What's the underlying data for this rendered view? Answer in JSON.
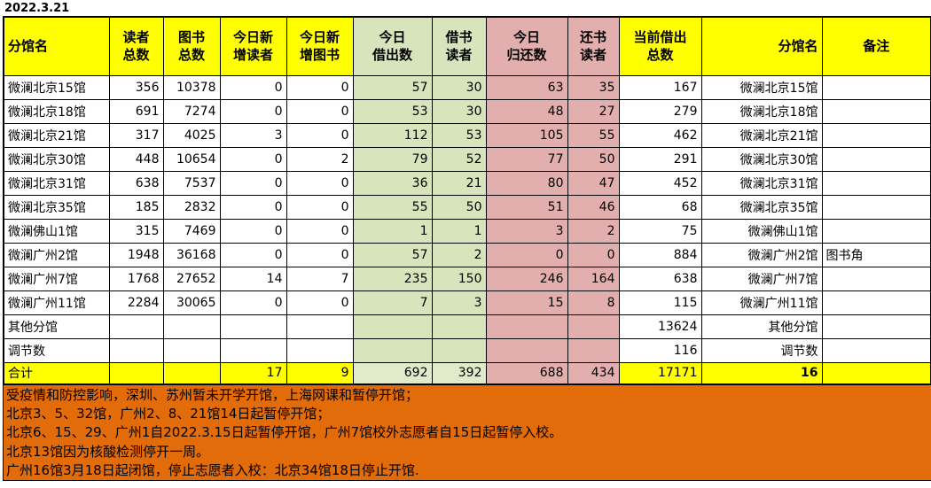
{
  "date": "2022.3.21",
  "colors": {
    "yellow": "#ffff00",
    "green": "#d8e4bc",
    "green_light": "#e1eacb",
    "pink": "#e2afae",
    "orange": "#e26b0a",
    "border": "#000000",
    "white": "#ffffff"
  },
  "table": {
    "columns": [
      {
        "key": "branch_name",
        "label": "分馆名",
        "header_bg": "yellow",
        "body_bg": "white",
        "total_bg": "yellow",
        "header_align": "left",
        "align": "left"
      },
      {
        "key": "readers_total",
        "label": "读者\n总数",
        "header_bg": "yellow",
        "body_bg": "white",
        "total_bg": "yellow",
        "header_align": "center",
        "align": "right"
      },
      {
        "key": "books_total",
        "label": "图书\n总数",
        "header_bg": "yellow",
        "body_bg": "white",
        "total_bg": "yellow",
        "header_align": "center",
        "align": "right"
      },
      {
        "key": "new_readers_today",
        "label": "今日新\n增读者",
        "header_bg": "yellow",
        "body_bg": "white",
        "total_bg": "yellow",
        "header_align": "center",
        "align": "right"
      },
      {
        "key": "new_books_today",
        "label": "今日新\n增图书",
        "header_bg": "yellow",
        "body_bg": "white",
        "total_bg": "yellow",
        "header_align": "center",
        "align": "right"
      },
      {
        "key": "borrowed_today",
        "label": "今日\n借出数",
        "header_bg": "green",
        "body_bg": "green",
        "total_bg": "green_light",
        "header_align": "center",
        "align": "right"
      },
      {
        "key": "borrowing_readers",
        "label": "借书\n读者",
        "header_bg": "green",
        "body_bg": "green",
        "total_bg": "green_light",
        "header_align": "center",
        "align": "right"
      },
      {
        "key": "returned_today",
        "label": "今日\n归还数",
        "header_bg": "pink",
        "body_bg": "pink",
        "total_bg": "pink",
        "header_align": "center",
        "align": "right"
      },
      {
        "key": "returning_readers",
        "label": "还书\n读者",
        "header_bg": "pink",
        "body_bg": "pink",
        "total_bg": "pink",
        "header_align": "center",
        "align": "right"
      },
      {
        "key": "current_borrowed_total",
        "label": "当前借出\n总数",
        "header_bg": "yellow",
        "body_bg": "white",
        "total_bg": "yellow",
        "header_align": "center",
        "align": "right"
      },
      {
        "key": "branch_name_right",
        "label": "分馆名",
        "header_bg": "yellow",
        "body_bg": "white",
        "total_bg": "yellow",
        "header_align": "right",
        "align": "right"
      },
      {
        "key": "remark",
        "label": "备注",
        "header_bg": "yellow",
        "body_bg": "white",
        "total_bg": "yellow",
        "header_align": "center",
        "align": "left"
      }
    ],
    "rows": [
      [
        "微澜北京15馆",
        "356",
        "10378",
        "0",
        "0",
        "57",
        "30",
        "63",
        "35",
        "167",
        "微澜北京15馆",
        ""
      ],
      [
        "微澜北京18馆",
        "691",
        "7274",
        "0",
        "0",
        "53",
        "30",
        "48",
        "27",
        "279",
        "微澜北京18馆",
        ""
      ],
      [
        "微澜北京21馆",
        "317",
        "4025",
        "3",
        "0",
        "112",
        "53",
        "105",
        "55",
        "462",
        "微澜北京21馆",
        ""
      ],
      [
        "微澜北京30馆",
        "448",
        "10654",
        "0",
        "2",
        "79",
        "52",
        "77",
        "50",
        "291",
        "微澜北京30馆",
        ""
      ],
      [
        "微澜北京31馆",
        "638",
        "7537",
        "0",
        "0",
        "36",
        "21",
        "80",
        "47",
        "452",
        "微澜北京31馆",
        ""
      ],
      [
        "微澜北京35馆",
        "185",
        "2832",
        "0",
        "0",
        "55",
        "50",
        "51",
        "46",
        "68",
        "微澜北京35馆",
        ""
      ],
      [
        "微澜佛山1馆",
        "315",
        "7469",
        "0",
        "0",
        "1",
        "1",
        "3",
        "2",
        "75",
        "微澜佛山1馆",
        ""
      ],
      [
        "微澜广州2馆",
        "1948",
        "36168",
        "0",
        "0",
        "57",
        "2",
        "0",
        "0",
        "884",
        "微澜广州2馆",
        "图书角"
      ],
      [
        "微澜广州7馆",
        "1768",
        "27652",
        "14",
        "7",
        "235",
        "150",
        "246",
        "164",
        "638",
        "微澜广州7馆",
        ""
      ],
      [
        "微澜广州11馆",
        "2284",
        "30065",
        "0",
        "0",
        "7",
        "3",
        "15",
        "8",
        "115",
        "微澜广州11馆",
        ""
      ],
      [
        "其他分馆",
        "",
        "",
        "",
        "",
        "",
        "",
        "",
        "",
        "13624",
        "其他分馆",
        ""
      ],
      [
        "调节数",
        "",
        "",
        "",
        "",
        "",
        "",
        "",
        "",
        "116",
        "调节数",
        ""
      ]
    ],
    "total_row": [
      "合计",
      "",
      "",
      "17",
      "9",
      "692",
      "392",
      "688",
      "434",
      "17171",
      "16",
      ""
    ]
  },
  "footer": {
    "lines": [
      "受疫情和防控影响，深圳、苏州暂未开学开馆，上海网课和暂停开馆；",
      "北京3、5、32馆，广州2、8、21馆14日起暂停开馆；",
      "北京6、15、29、广州1自2022.3.15日起暂停开馆，广州7馆校外志愿者自15日起暂停入校。",
      "北京13馆因为核酸检测停开一周。",
      "广州16馆3月18日起闭馆，停止志愿者入校：北京34馆18日停止开馆."
    ]
  }
}
